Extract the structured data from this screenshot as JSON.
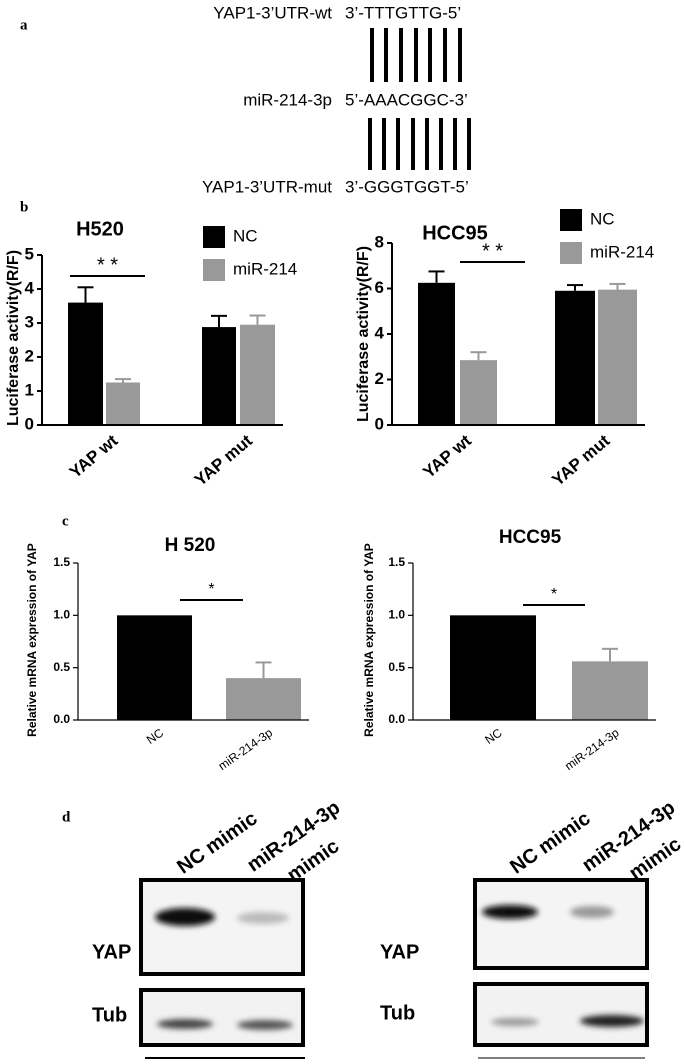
{
  "panel_labels": [
    "a",
    "b",
    "c",
    "d"
  ],
  "sequence": {
    "rows": [
      {
        "name": "YAP1-3’UTR-wt",
        "seq": "3’-TTTGTTG-5’"
      },
      {
        "name": "miR-214-3p",
        "seq": "5’-AAACGGC-3’"
      },
      {
        "name": "YAP1-3’UTR-mut",
        "seq": "3’-GGGTGGT-5’"
      }
    ]
  },
  "chart_data": [
    {
      "type": "grouped_bar",
      "title": "H520",
      "ylabel": "Luciferase activity(R/F)",
      "categories": [
        "YAP wt",
        "YAP mut"
      ],
      "series": [
        {
          "name": "NC",
          "color": "#000000",
          "values": [
            3.6,
            2.88
          ],
          "errors": [
            0.45,
            0.33
          ]
        },
        {
          "name": "miR-214",
          "color": "#999999",
          "values": [
            1.25,
            2.95
          ],
          "errors": [
            0.1,
            0.27
          ]
        }
      ],
      "ylim": [
        0,
        5
      ],
      "yticks": [
        0,
        1,
        2,
        3,
        4,
        5
      ],
      "significance": "* *"
    },
    {
      "type": "grouped_bar",
      "title": "HCC95",
      "ylabel": "Luciferase activity(R/F)",
      "categories": [
        "YAP wt",
        "YAP mut"
      ],
      "series": [
        {
          "name": "NC",
          "color": "#000000",
          "values": [
            6.25,
            5.9
          ],
          "errors": [
            0.5,
            0.25
          ]
        },
        {
          "name": "miR-214",
          "color": "#999999",
          "values": [
            2.85,
            5.95
          ],
          "errors": [
            0.35,
            0.25
          ]
        }
      ],
      "ylim": [
        0,
        8
      ],
      "yticks": [
        0,
        2,
        4,
        6,
        8
      ],
      "significance": "* *"
    },
    {
      "type": "bar",
      "title": "H 520",
      "ylabel": "Relative  mRNA expression of YAP",
      "categories": [
        "NC",
        "miR-214-3p"
      ],
      "values": [
        1.0,
        0.4
      ],
      "errors": [
        0,
        0.15
      ],
      "colors": [
        "#000000",
        "#999999"
      ],
      "ylim": [
        0,
        1.5
      ],
      "yticks": [
        {
          "value": 0,
          "label": "0.0"
        },
        0.5,
        {
          "value": 1,
          "label": "1.0"
        },
        1.5
      ],
      "significance": "*"
    },
    {
      "type": "bar",
      "title": "HCC95",
      "ylabel": "Relative  mRNA expression of YAP",
      "categories": [
        "NC",
        "miR-214-3p"
      ],
      "values": [
        1.0,
        0.56
      ],
      "errors": [
        0,
        0.12
      ],
      "colors": [
        "#000000",
        "#999999"
      ],
      "ylim": [
        0,
        1.5
      ],
      "yticks": [
        {
          "value": 0,
          "label": "0.0"
        },
        0.5,
        {
          "value": 1,
          "label": "1.0"
        },
        1.5
      ],
      "significance": "*"
    }
  ],
  "western_blot": [
    {
      "lanes": [
        "NC mimic",
        "miR-214-3p",
        "mimic"
      ],
      "rows": [
        "YAP",
        "Tub"
      ]
    },
    {
      "lanes": [
        "NC mimic",
        "miR-214-3p",
        "mimic"
      ],
      "rows": [
        "YAP",
        "Tub"
      ]
    }
  ]
}
